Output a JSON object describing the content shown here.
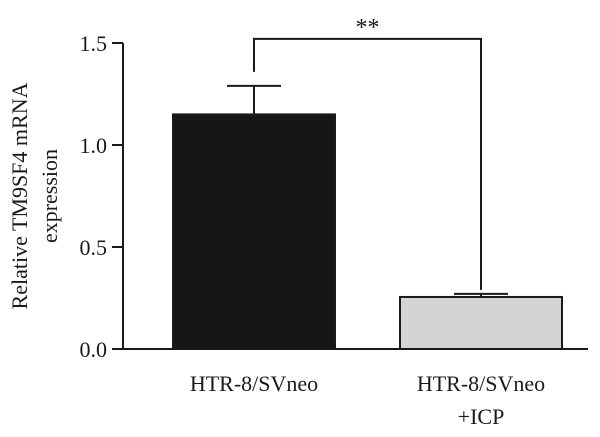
{
  "chart_data": {
    "type": "bar",
    "categories": [
      [
        "HTR-8/SVneo"
      ],
      [
        "HTR-8/SVneo",
        "+ICP"
      ]
    ],
    "values": [
      1.15,
      0.255
    ],
    "error": [
      0.14,
      0.015
    ],
    "bar_colors": [
      "#161616",
      "#d4d4d4"
    ],
    "ylabel_lines": [
      "Relative TM9SF4 mRNA",
      "expression"
    ],
    "ylim": [
      0,
      1.5
    ],
    "yticks": [
      "0.0",
      "0.5",
      "1.0",
      "1.5"
    ],
    "significance": {
      "label": "**",
      "between": [
        0,
        1
      ],
      "y": 1.52
    },
    "grid": false,
    "legend": "none"
  }
}
